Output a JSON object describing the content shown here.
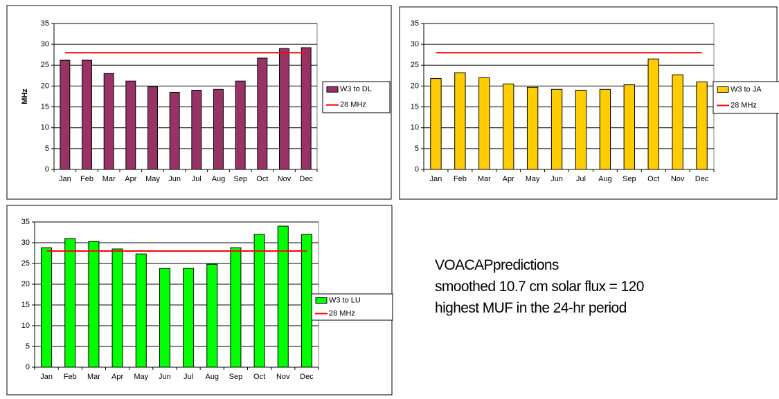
{
  "chart_data": [
    {
      "type": "bar",
      "ylabel": "MHz",
      "categories": [
        "Jan",
        "Feb",
        "Mar",
        "Apr",
        "May",
        "Jun",
        "Jul",
        "Aug",
        "Sep",
        "Oct",
        "Nov",
        "Dec"
      ],
      "series": [
        {
          "name": "W3 to DL",
          "type": "bar",
          "color": "#993366",
          "values": [
            26.2,
            26.2,
            23,
            21.2,
            19.8,
            18.5,
            19,
            19.2,
            21.2,
            26.7,
            29,
            29.2
          ]
        },
        {
          "name": "28 MHz",
          "type": "line",
          "color": "#ff0000",
          "values": [
            28,
            28,
            28,
            28,
            28,
            28,
            28,
            28,
            28,
            28,
            28,
            28
          ]
        }
      ],
      "ylim": [
        0,
        35
      ],
      "yticks": [
        0,
        5,
        10,
        15,
        20,
        25,
        30,
        35
      ],
      "grid": true,
      "legend": "right"
    },
    {
      "type": "bar",
      "categories": [
        "Jan",
        "Feb",
        "Mar",
        "Apr",
        "May",
        "Jun",
        "Jul",
        "Aug",
        "Sep",
        "Oct",
        "Nov",
        "Dec"
      ],
      "series": [
        {
          "name": "W3 to JA",
          "type": "bar",
          "color": "#ffcc00",
          "values": [
            21.8,
            23.2,
            22,
            20.5,
            19.7,
            19.2,
            19,
            19.2,
            20.3,
            26.5,
            22.7,
            21
          ]
        },
        {
          "name": "28 MHz",
          "type": "line",
          "color": "#ff0000",
          "values": [
            28,
            28,
            28,
            28,
            28,
            28,
            28,
            28,
            28,
            28,
            28,
            28
          ]
        }
      ],
      "ylim": [
        0,
        35
      ],
      "yticks": [
        0,
        5,
        10,
        15,
        20,
        25,
        30,
        35
      ],
      "grid": true,
      "legend": "right"
    },
    {
      "type": "bar",
      "categories": [
        "Jan",
        "Feb",
        "Mar",
        "Apr",
        "May",
        "Jun",
        "Jul",
        "Aug",
        "Sep",
        "Oct",
        "Nov",
        "Dec"
      ],
      "series": [
        {
          "name": "W3 to LU",
          "type": "bar",
          "color": "#00ff00",
          "values": [
            28.8,
            31,
            30.3,
            28.5,
            27.3,
            23.8,
            23.8,
            24.8,
            28.8,
            32,
            34,
            32
          ]
        },
        {
          "name": "28 MHz",
          "type": "line",
          "color": "#ff0000",
          "values": [
            28,
            28,
            28,
            28,
            28,
            28,
            28,
            28,
            28,
            28,
            28,
            28
          ]
        }
      ],
      "ylim": [
        0,
        35
      ],
      "yticks": [
        0,
        5,
        10,
        15,
        20,
        25,
        30,
        35
      ],
      "grid": true,
      "legend": "right"
    }
  ],
  "notes": [
    "VOACAPpredictions",
    "smoothed 10.7 cm solar flux = 120",
    "highest MUF in the 24-hr period"
  ]
}
